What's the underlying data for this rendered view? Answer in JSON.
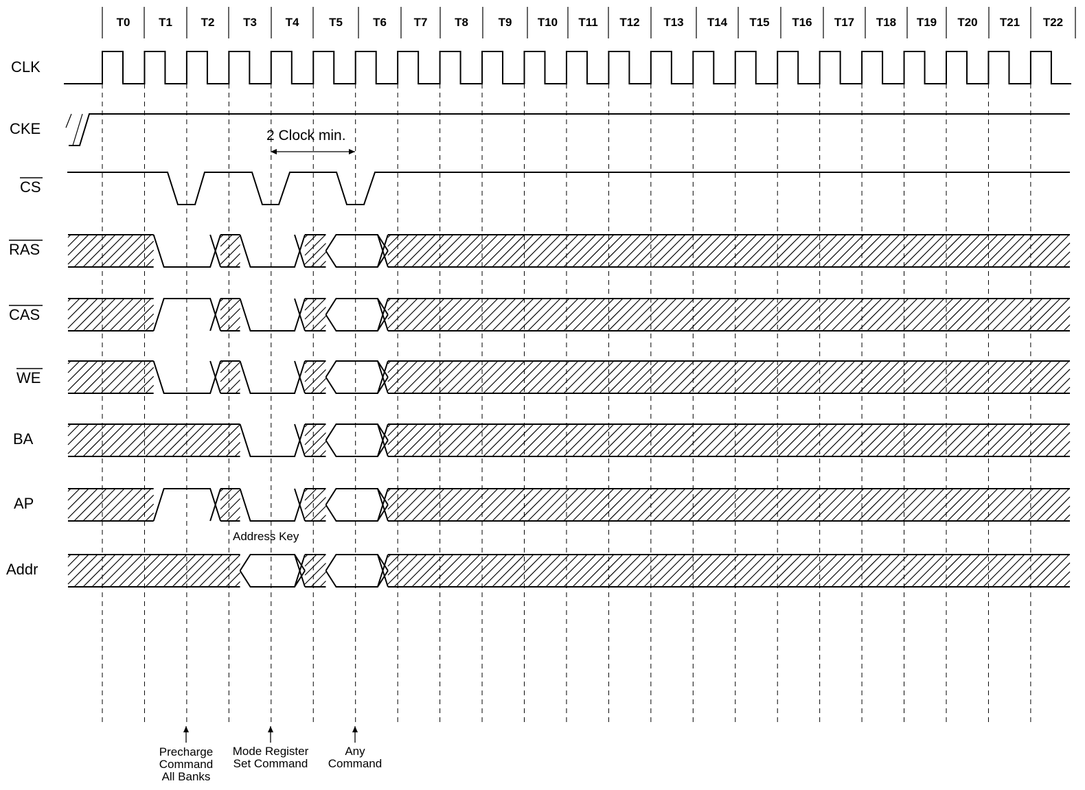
{
  "periods": [
    "T0",
    "T1",
    "T2",
    "T3",
    "T4",
    "T5",
    "T6",
    "T7",
    "T8",
    "T9",
    "T10",
    "T11",
    "T12",
    "T13",
    "T14",
    "T15",
    "T16",
    "T17",
    "T18",
    "T19",
    "T20",
    "T21",
    "T22"
  ],
  "signals": {
    "clk": "CLK",
    "cke": "CKE",
    "cs": "CS",
    "ras": "RAS",
    "cas": "CAS",
    "we": "WE",
    "ba": "BA",
    "ap": "AP",
    "addr": "Addr"
  },
  "annotations": {
    "clock_min": "2 Clock min.",
    "address_key": "Address Key"
  },
  "commands": {
    "precharge": [
      "Precharge",
      "Command",
      "All Banks"
    ],
    "mode_register": [
      "Mode Register",
      "Set Command"
    ],
    "any": [
      "Any",
      "Command"
    ]
  }
}
